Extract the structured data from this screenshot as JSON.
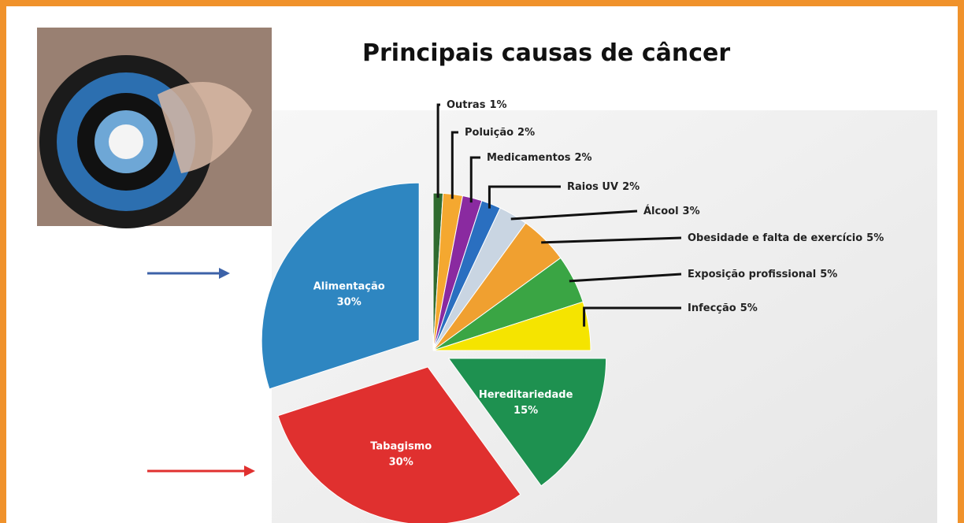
{
  "chart_data": {
    "type": "pie",
    "title": "Principais causas de câncer",
    "categories": [
      "Outras",
      "Poluição",
      "Medicamentos",
      "Raios UV",
      "Álcool",
      "Obesidade e falta de exercício",
      "Exposição profissional",
      "Infecção",
      "Hereditariedade",
      "Tabagismo",
      "Alimentação"
    ],
    "values": [
      1,
      2,
      2,
      2,
      3,
      5,
      5,
      5,
      15,
      30,
      30
    ],
    "value_labels": [
      "1%",
      "2%",
      "2%",
      "2%",
      "3%",
      "5%",
      "5%",
      "5%",
      "15%",
      "30%",
      "30%"
    ],
    "colors": [
      "#2f6b2f",
      "#f4a830",
      "#8a2aa0",
      "#2a6fc0",
      "#c9d5e2",
      "#f0a030",
      "#3aa544",
      "#f5e400",
      "#1e9150",
      "#e0302f",
      "#2e86c1"
    ]
  }
}
